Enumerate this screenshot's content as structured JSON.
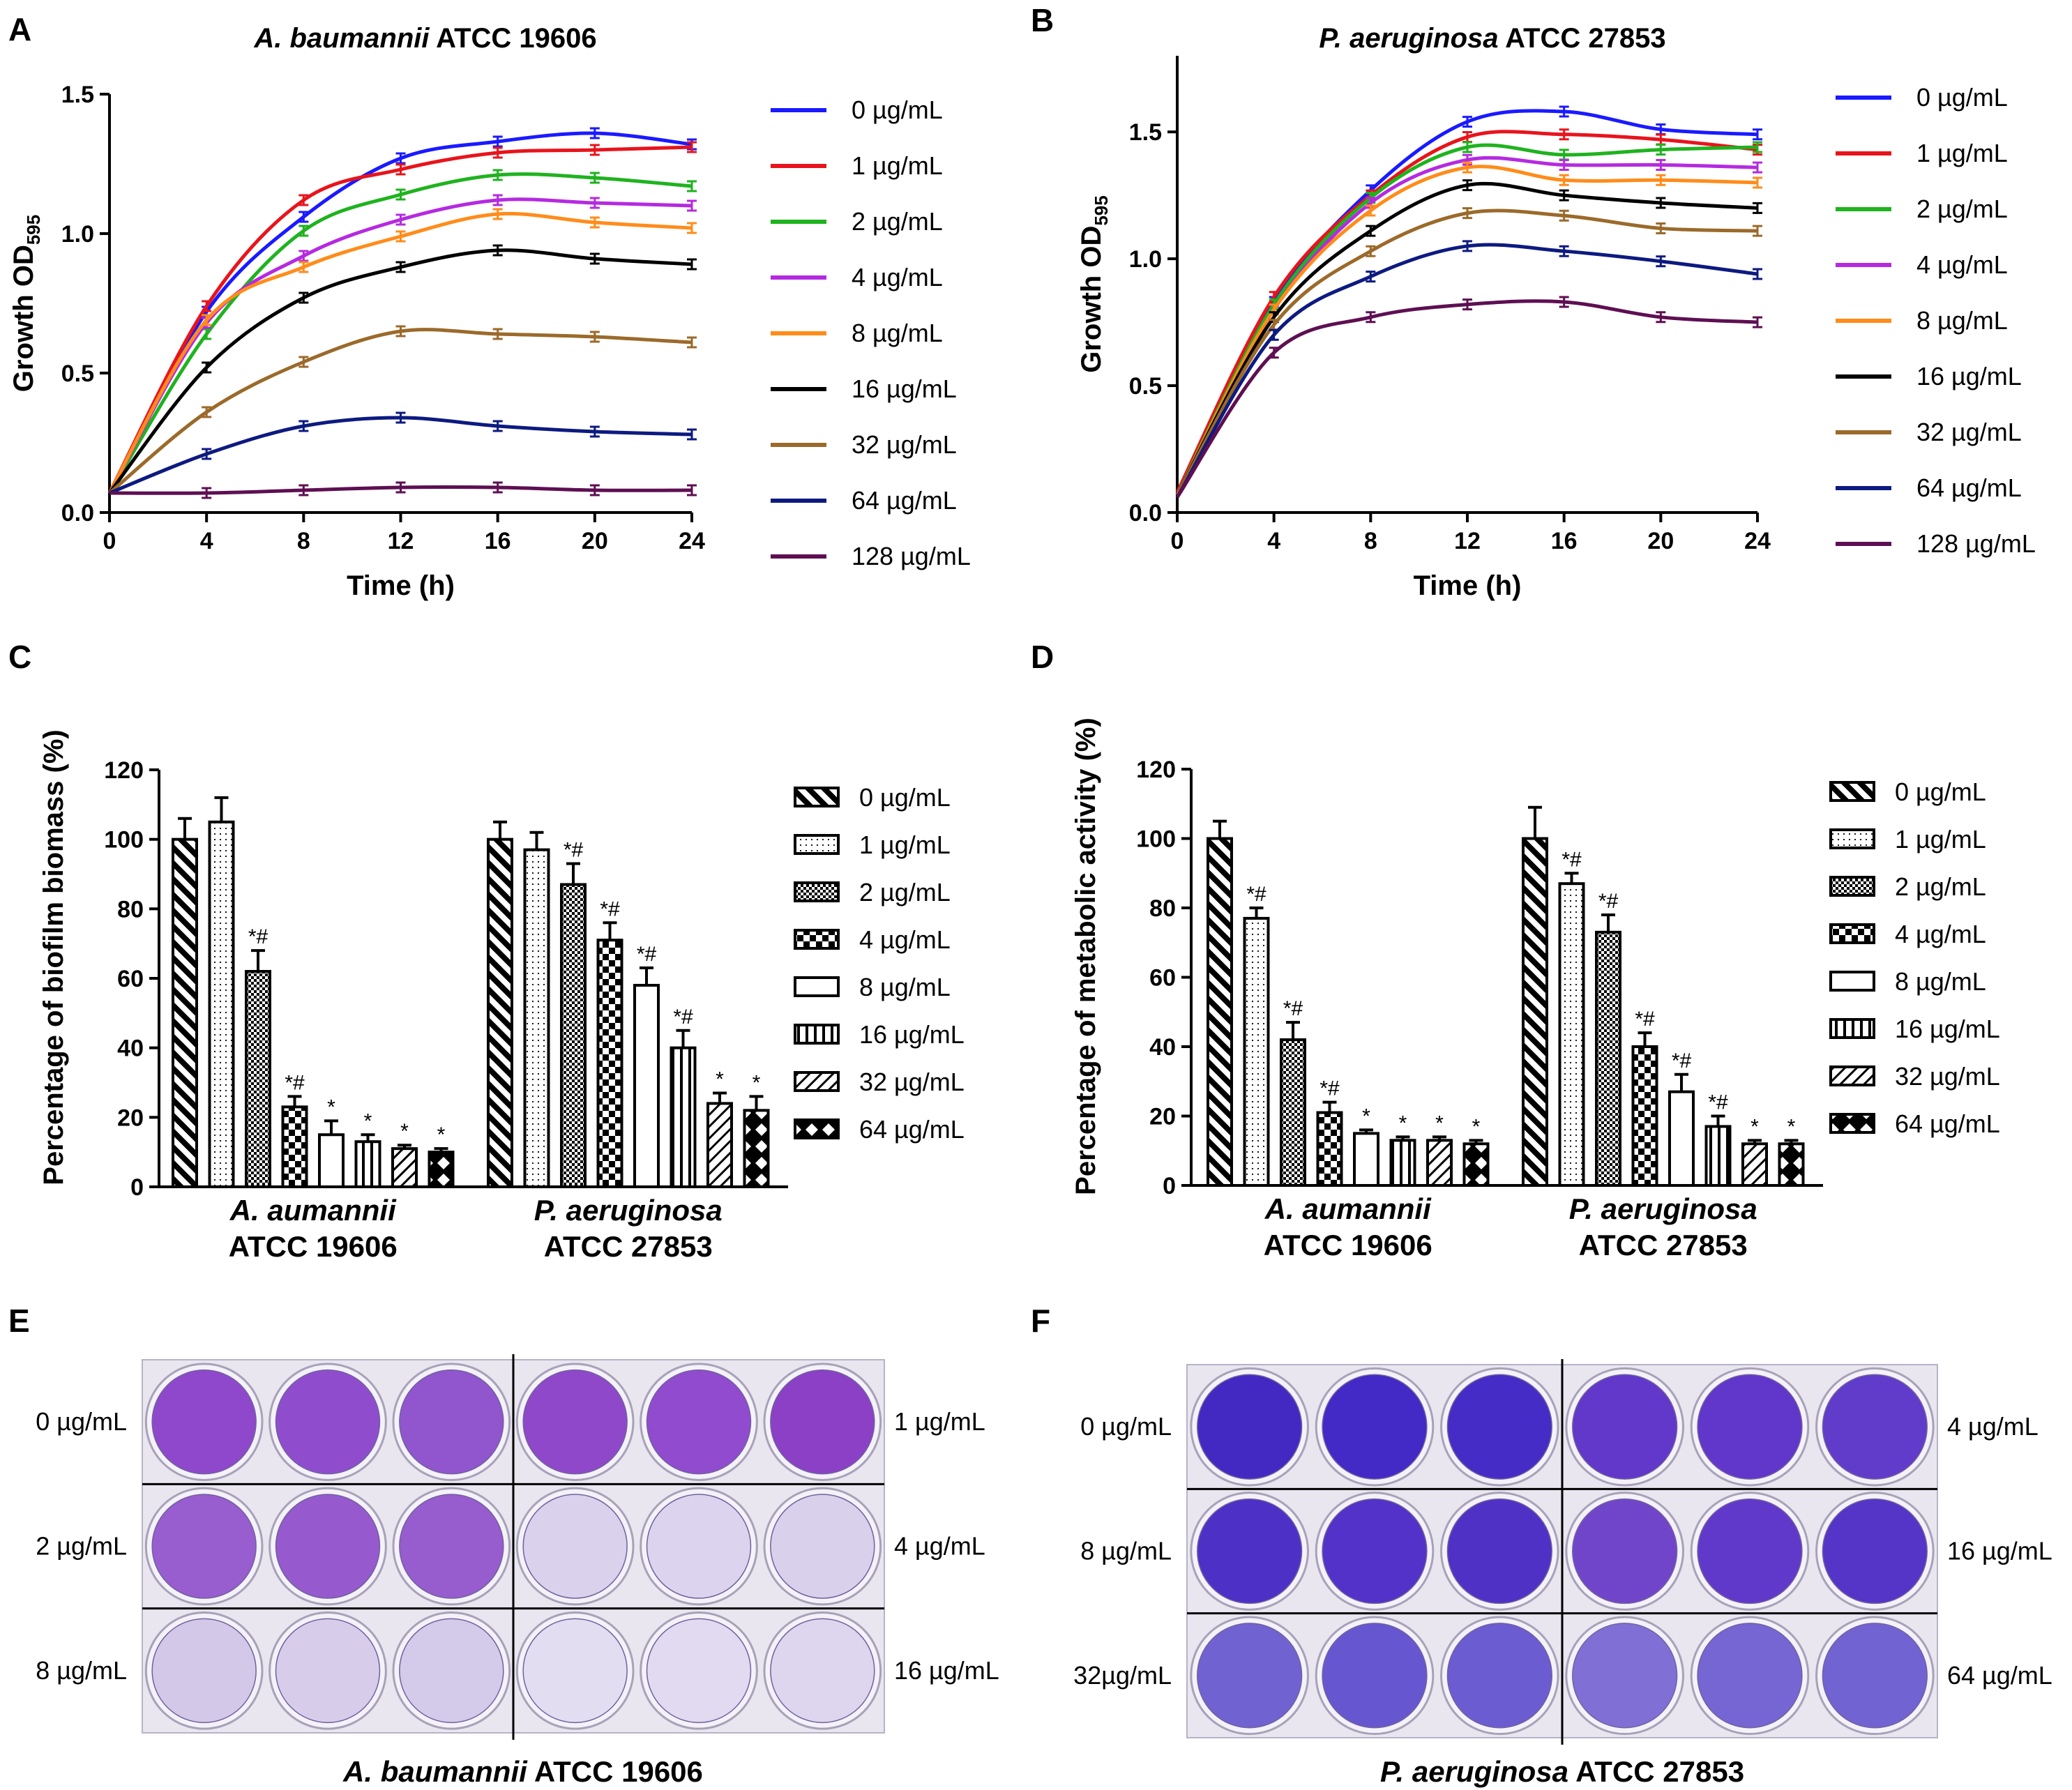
{
  "colors": {
    "0 µg/mL": "#1a1aff",
    "1 µg/mL": "#e8141c",
    "2 µg/mL": "#1fb31f",
    "4 µg/mL": "#b52ae0",
    "8 µg/mL": "#ff8c1a",
    "16 µg/mL": "#000000",
    "32 µg/mL": "#9b6a2a",
    "64 µg/mL": "#0d1a80",
    "128 µg/mL": "#5e0f52"
  },
  "chart_data": [
    {
      "id": "A",
      "type": "line",
      "panel_label": "A",
      "title_italic": "A. baumannii",
      "title_rest": " ATCC 19606",
      "xlabel": "Time (h)",
      "ylabel_main": "Growth OD",
      "ylabel_sub": "595",
      "xlim": [
        0,
        24
      ],
      "ylim": [
        0,
        1.5
      ],
      "xticks": [
        "0",
        "4",
        "8",
        "12",
        "16",
        "20",
        "24"
      ],
      "yticks": [
        "0.0",
        "0.5",
        "1.0",
        "1.5"
      ],
      "ytick_values": [
        0,
        0.5,
        1.0,
        1.5
      ],
      "x": [
        0,
        4,
        8,
        12,
        16,
        20,
        24
      ],
      "series": [
        {
          "name": "0 µg/mL",
          "values": [
            0.07,
            0.72,
            1.06,
            1.27,
            1.33,
            1.36,
            1.32
          ]
        },
        {
          "name": "1 µg/mL",
          "values": [
            0.07,
            0.74,
            1.12,
            1.23,
            1.29,
            1.3,
            1.31
          ]
        },
        {
          "name": "2 µg/mL",
          "values": [
            0.07,
            0.64,
            1.01,
            1.14,
            1.21,
            1.2,
            1.17
          ]
        },
        {
          "name": "4 µg/mL",
          "values": [
            0.07,
            0.68,
            0.92,
            1.05,
            1.12,
            1.11,
            1.1
          ]
        },
        {
          "name": "8 µg/mL",
          "values": [
            0.07,
            0.69,
            0.88,
            0.99,
            1.07,
            1.04,
            1.02
          ]
        },
        {
          "name": "16 µg/mL",
          "values": [
            0.07,
            0.52,
            0.77,
            0.88,
            0.94,
            0.91,
            0.89
          ]
        },
        {
          "name": "32 µg/mL",
          "values": [
            0.07,
            0.36,
            0.54,
            0.65,
            0.64,
            0.63,
            0.61
          ]
        },
        {
          "name": "64 µg/mL",
          "values": [
            0.07,
            0.21,
            0.31,
            0.34,
            0.31,
            0.29,
            0.28
          ]
        },
        {
          "name": "128 µg/mL",
          "values": [
            0.07,
            0.07,
            0.08,
            0.09,
            0.09,
            0.08,
            0.08
          ]
        }
      ]
    },
    {
      "id": "B",
      "type": "line",
      "panel_label": "B",
      "title_italic": "P. aeruginosa",
      "title_rest": " ATCC 27853",
      "xlabel": "Time (h)",
      "ylabel_main": "Growth OD",
      "ylabel_sub": "595",
      "xlim": [
        0,
        24
      ],
      "ylim": [
        0,
        1.8
      ],
      "xticks": [
        "0",
        "4",
        "8",
        "12",
        "16",
        "20",
        "24"
      ],
      "yticks": [
        "0.0",
        "0.5",
        "1.0",
        "1.5"
      ],
      "ytick_values": [
        0,
        0.5,
        1.0,
        1.5
      ],
      "x": [
        0,
        4,
        8,
        12,
        16,
        20,
        24
      ],
      "series": [
        {
          "name": "0 µg/mL",
          "values": [
            0.07,
            0.83,
            1.27,
            1.54,
            1.58,
            1.51,
            1.49
          ]
        },
        {
          "name": "1 µg/mL",
          "values": [
            0.08,
            0.85,
            1.25,
            1.48,
            1.49,
            1.47,
            1.43
          ]
        },
        {
          "name": "2 µg/mL",
          "values": [
            0.07,
            0.82,
            1.24,
            1.44,
            1.41,
            1.43,
            1.44
          ]
        },
        {
          "name": "4 µg/mL",
          "values": [
            0.07,
            0.8,
            1.22,
            1.39,
            1.37,
            1.37,
            1.36
          ]
        },
        {
          "name": "8 µg/mL",
          "values": [
            0.07,
            0.8,
            1.19,
            1.36,
            1.31,
            1.31,
            1.3
          ]
        },
        {
          "name": "16 µg/mL",
          "values": [
            0.07,
            0.77,
            1.11,
            1.29,
            1.25,
            1.22,
            1.2
          ]
        },
        {
          "name": "32 µg/mL",
          "values": [
            0.07,
            0.74,
            1.03,
            1.18,
            1.17,
            1.12,
            1.11
          ]
        },
        {
          "name": "64 µg/mL",
          "values": [
            0.06,
            0.7,
            0.93,
            1.05,
            1.03,
            0.99,
            0.94
          ]
        },
        {
          "name": "128 µg/mL",
          "values": [
            0.06,
            0.63,
            0.77,
            0.82,
            0.83,
            0.77,
            0.75
          ]
        }
      ]
    },
    {
      "id": "C",
      "type": "bar",
      "panel_label": "C",
      "ylabel": "Percentage of biofilm biomass (%)",
      "ylim": [
        0,
        120
      ],
      "yticks": [
        "0",
        "20",
        "40",
        "60",
        "80",
        "100",
        "120"
      ],
      "ytick_values": [
        0,
        20,
        40,
        60,
        80,
        100,
        120
      ],
      "groups": [
        {
          "label_line1": "A. aumannii",
          "label_line2": "ATCC 19606",
          "values": [
            100,
            105,
            62,
            23,
            15,
            13,
            11,
            10
          ],
          "errors": [
            6,
            7,
            6,
            3,
            4,
            2,
            1,
            1
          ],
          "marks": [
            "",
            "",
            "*#",
            "*#",
            "*",
            "*",
            "*",
            "*"
          ]
        },
        {
          "label_line1": "P. aeruginosa",
          "label_line2": "ATCC 27853",
          "values": [
            100,
            97,
            87,
            71,
            58,
            40,
            24,
            22
          ],
          "errors": [
            5,
            5,
            6,
            5,
            5,
            5,
            3,
            4
          ],
          "marks": [
            "",
            "",
            "*#",
            "*#",
            "*#",
            "*#",
            "*",
            "*"
          ]
        }
      ],
      "legend": [
        "0 µg/mL",
        "1 µg/mL",
        "2 µg/mL",
        "4 µg/mL",
        "8 µg/mL",
        "16 µg/mL",
        "32 µg/mL",
        "64 µg/mL"
      ]
    },
    {
      "id": "D",
      "type": "bar",
      "panel_label": "D",
      "ylabel": "Percentage of metabolic activity (%)",
      "ylim": [
        0,
        120
      ],
      "yticks": [
        "0",
        "20",
        "40",
        "60",
        "80",
        "100",
        "120"
      ],
      "ytick_values": [
        0,
        20,
        40,
        60,
        80,
        100,
        120
      ],
      "groups": [
        {
          "label_line1": "A. aumannii",
          "label_line2": "ATCC 19606",
          "values": [
            100,
            77,
            42,
            21,
            15,
            13,
            13,
            12
          ],
          "errors": [
            5,
            3,
            5,
            3,
            1,
            1,
            1,
            1
          ],
          "marks": [
            "",
            "*#",
            "*#",
            "*#",
            "*",
            "*",
            "*",
            "*"
          ]
        },
        {
          "label_line1": "P. aeruginosa",
          "label_line2": "ATCC 27853",
          "values": [
            100,
            87,
            73,
            40,
            27,
            17,
            12,
            12
          ],
          "errors": [
            9,
            3,
            5,
            4,
            5,
            3,
            1,
            1
          ],
          "marks": [
            "",
            "*#",
            "*#",
            "*#",
            "*#",
            "*#",
            "*",
            "*"
          ]
        }
      ],
      "legend": [
        "0 µg/mL",
        "1 µg/mL",
        "2 µg/mL",
        "4 µg/mL",
        "8 µg/mL",
        "16 µg/mL",
        "32 µg/mL",
        "64 µg/mL"
      ]
    }
  ],
  "plates": [
    {
      "id": "E",
      "panel_label": "E",
      "caption_italic": "A. baumannii",
      "caption_rest": " ATCC 19606",
      "left_labels": [
        "0 µg/mL",
        "2 µg/mL",
        "8 µg/mL"
      ],
      "right_labels": [
        "1 µg/mL",
        "4 µg/mL",
        "16 µg/mL"
      ],
      "well_colors": [
        [
          "#8a3fc9",
          "#8a45cc",
          "#8c4dcc",
          "#8a3fc8",
          "#8c43cc",
          "#8637c4"
        ],
        [
          "#9456cc",
          "#9251cc",
          "#9355cc",
          "#d9d0ec",
          "#dbd3ee",
          "#d8cfeb"
        ],
        [
          "#d2c6e8",
          "#d6cceb",
          "#d3c8e9",
          "#e3dcf1",
          "#e0d9f0",
          "#ddd4ee"
        ]
      ]
    },
    {
      "id": "F",
      "panel_label": "F",
      "caption_italic": "P. aeruginosa",
      "caption_rest": " ATCC 27853",
      "left_labels": [
        "0 µg/mL",
        "8 µg/mL",
        "32µg/mL"
      ],
      "right_labels": [
        "4 µg/mL",
        "16 µg/mL",
        "64 µg/mL"
      ],
      "well_colors": [
        [
          "#3a1fc0",
          "#3a1fc4",
          "#3c22c4",
          "#5a2fc8",
          "#5a2cc8",
          "#5a33c8"
        ],
        [
          "#4526c4",
          "#4a28c6",
          "#4727c4",
          "#6a3cc8",
          "#5a30c8",
          "#4d2ac6"
        ],
        [
          "#6a5bd0",
          "#5f4fce",
          "#6454cf",
          "#7a6ad4",
          "#6f5fd2",
          "#6c5cd2"
        ]
      ]
    }
  ]
}
